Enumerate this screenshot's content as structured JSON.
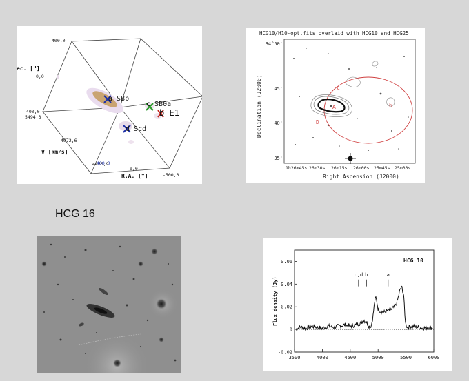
{
  "caption": "HCG 16",
  "cube_plot": {
    "axis_dec": "ec. [\"]",
    "axis_v": "V [km/s]",
    "axis_ra": "R.A. [\"]",
    "ticks": {
      "dec_top": "400,0",
      "dec_mid": "0,0",
      "dec_low": "-400,0",
      "v_high": "5494,3",
      "v_mid": "4972,6",
      "v_low": "4450,9",
      "ra_low": "400,0",
      "ra_mid": "0,0",
      "ra_high": "-500,0"
    },
    "galaxies": [
      {
        "label": "a SBb",
        "color": "#1a2ea8"
      },
      {
        "label": "c SB0a",
        "color": "#2a9a2a"
      },
      {
        "label": "b E1",
        "color": "#c0241c"
      },
      {
        "label": "d Scd",
        "color": "#1a2ea8"
      }
    ]
  },
  "overlay_plot": {
    "title": "HCG10/H10-opt.fits overlaid with HCG10 and HCG25",
    "ylabel": "Declination (J2000)",
    "xlabel": "Right Ascension (J2000)",
    "y_ticks": [
      "34°50'",
      "45'",
      "40'",
      "35'"
    ],
    "x_ticks": [
      "1h26m45s",
      "26m30s",
      "26m15s",
      "26m00s",
      "25m45s",
      "25m30s"
    ],
    "labels": {
      "a": "A",
      "b": "b",
      "c": "c",
      "d": "D"
    }
  },
  "chart_data": {
    "type": "line",
    "title": "HCG 10",
    "xlabel": "",
    "ylabel": "Flux density (Jy)",
    "xlim": [
      3500,
      6000
    ],
    "ylim": [
      -0.02,
      0.07
    ],
    "x_ticks": [
      "3500",
      "4000",
      "4500",
      "5000",
      "5500",
      "6000"
    ],
    "y_ticks": [
      "0.06",
      "0.04",
      "0.02",
      "0",
      "-0.02"
    ],
    "markers": [
      {
        "label": "c,d",
        "x": 4650
      },
      {
        "label": "b",
        "x": 4790
      },
      {
        "label": "a",
        "x": 5180
      }
    ],
    "baseline": 0,
    "series": [
      {
        "x": [
          3520,
          3600,
          3700,
          3800,
          3900,
          4000,
          4100,
          4200,
          4300,
          4400,
          4500,
          4600,
          4650,
          4700,
          4750,
          4800,
          4850,
          4880,
          4910,
          4940,
          4960,
          4980,
          5000,
          5050,
          5100,
          5150,
          5200,
          5250,
          5300,
          5340,
          5370,
          5400,
          5430,
          5460,
          5480,
          5500,
          5530,
          5600,
          5700,
          5800,
          5900,
          5980
        ],
        "y": [
          0.0,
          0.002,
          0.001,
          0.003,
          0.002,
          0.001,
          0.003,
          0.002,
          0.003,
          0.004,
          0.003,
          0.004,
          0.005,
          0.006,
          0.008,
          0.006,
          0.002,
          0.004,
          0.012,
          0.025,
          0.028,
          0.024,
          0.018,
          0.016,
          0.015,
          0.016,
          0.017,
          0.018,
          0.02,
          0.024,
          0.03,
          0.036,
          0.037,
          0.03,
          0.012,
          0.004,
          0.002,
          0.003,
          0.002,
          0.001,
          0.002,
          0.001
        ]
      }
    ]
  }
}
